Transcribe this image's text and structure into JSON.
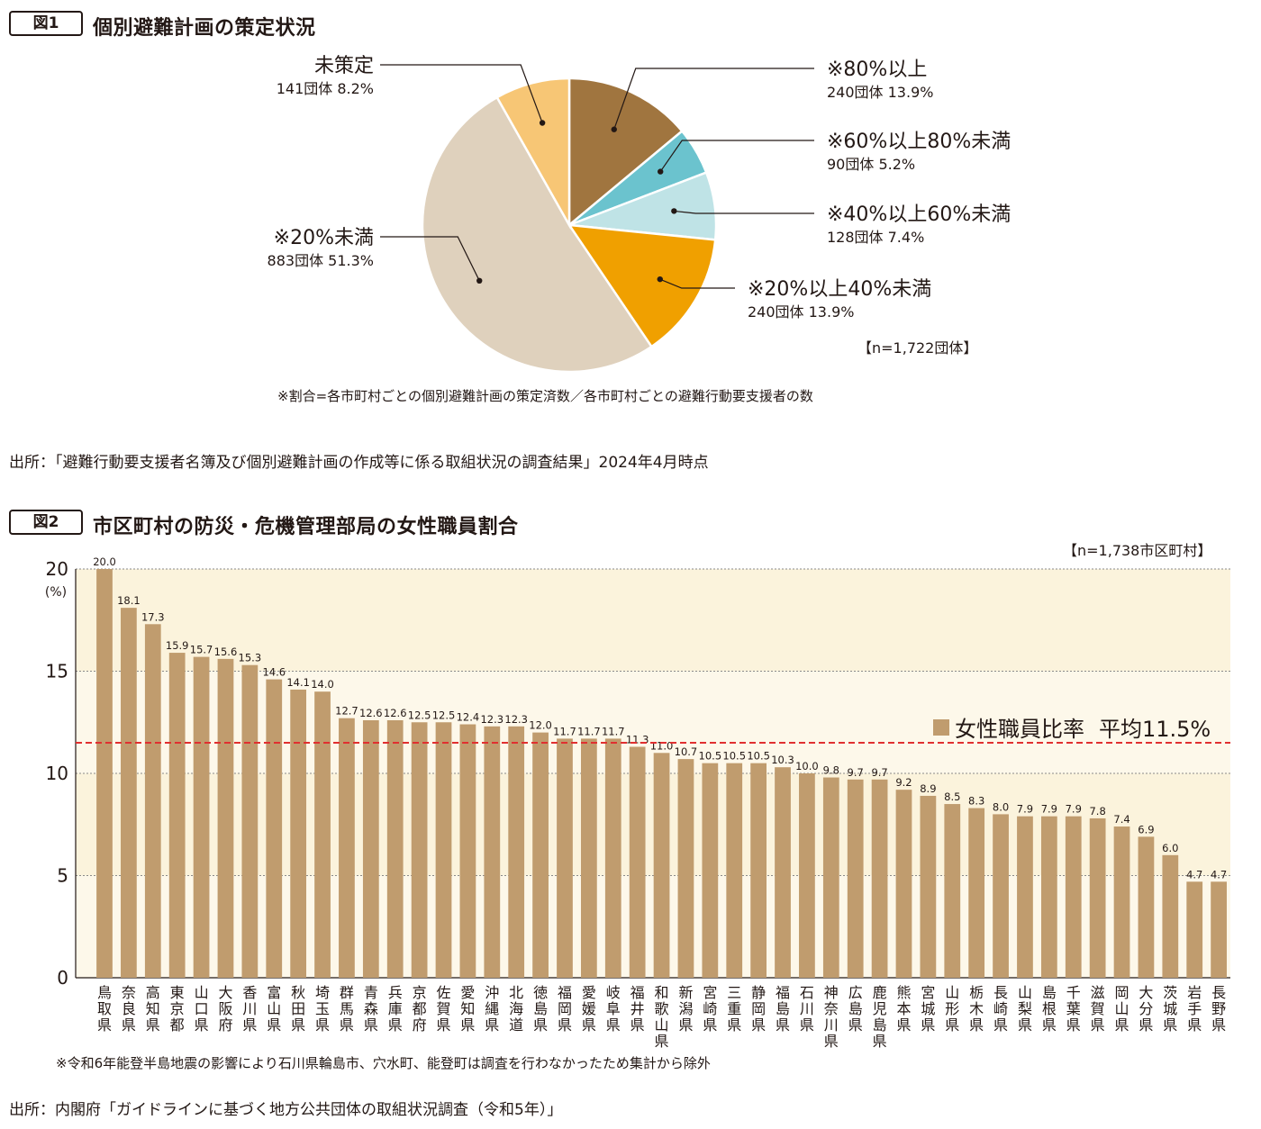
{
  "fig1": {
    "badge": "図1",
    "title": "個別避難計画の策定状況",
    "n_label": "【n=1,722団体】",
    "footnote": "※割合=各市町村ごとの個別避難計画の策定済数／各市町村ごとの避難行動要支援者の数",
    "source": "出所：「避難行動要支援者名簿及び個別避難計画の作成等に係る取組状況の調査結果」2024年4月時点"
  },
  "fig2": {
    "badge": "図2",
    "title": "市区町村の防災・危機管理部局の女性職員割合",
    "n_label": "【n=1,738市区町村】",
    "y_unit": "(%)",
    "legend_label": "女性職員比率",
    "avg_label": "平均11.5%",
    "footnote": "※令和6年能登半島地震の影響により石川県輪島市、穴水町、能登町は調査を行わなかったため集計から除外",
    "source": "出所：内閣府「ガイドラインに基づく地方公共団体の取組状況調査（令和5年）」"
  },
  "chart_data": [
    {
      "type": "pie",
      "slices": [
        {
          "label": "※80%以上",
          "detail": "240団体 13.9%",
          "count": 240,
          "percent": 13.9,
          "color": "#a0753f"
        },
        {
          "label": "※60%以上80%未満",
          "detail": "90団体 5.2%",
          "count": 90,
          "percent": 5.2,
          "color": "#6bc3ce"
        },
        {
          "label": "※40%以上60%未満",
          "detail": "128団体 7.4%",
          "count": 128,
          "percent": 7.4,
          "color": "#bfe3e6"
        },
        {
          "label": "※20%以上40%未満",
          "detail": "240団体 13.9%",
          "count": 240,
          "percent": 13.9,
          "color": "#f0a000"
        },
        {
          "label": "※20%未満",
          "detail": "883団体 51.3%",
          "count": 883,
          "percent": 51.3,
          "color": "#dfd1bd"
        },
        {
          "label": "未策定",
          "detail": "141団体 8.2%",
          "count": 141,
          "percent": 8.2,
          "color": "#f7c675"
        }
      ]
    },
    {
      "type": "bar",
      "ylim": [
        0,
        20
      ],
      "yticks": [
        0,
        5,
        10,
        15,
        20
      ],
      "average": 11.5,
      "bar_color": "#c09c6e",
      "avg_line_color": "#e03030",
      "categories": [
        "鳥取県",
        "奈良県",
        "高知県",
        "東京都",
        "山口県",
        "大阪府",
        "香川県",
        "富山県",
        "秋田県",
        "埼玉県",
        "群馬県",
        "青森県",
        "兵庫県",
        "京都府",
        "佐賀県",
        "愛知県",
        "沖縄県",
        "北海道",
        "徳島県",
        "福岡県",
        "愛媛県",
        "岐阜県",
        "福井県",
        "和歌山県",
        "新潟県",
        "宮崎県",
        "三重県",
        "静岡県",
        "福島県",
        "石川県",
        "神奈川県",
        "広島県",
        "鹿児島県",
        "熊本県",
        "宮城県",
        "山形県",
        "栃木県",
        "長崎県",
        "山梨県",
        "島根県",
        "千葉県",
        "滋賀県",
        "岡山県",
        "大分県",
        "茨城県",
        "岩手県",
        "長野県"
      ],
      "values": [
        20.0,
        18.1,
        17.3,
        15.9,
        15.7,
        15.6,
        15.3,
        14.6,
        14.1,
        14.0,
        12.7,
        12.6,
        12.6,
        12.5,
        12.5,
        12.4,
        12.3,
        12.3,
        12.0,
        11.7,
        11.7,
        11.7,
        11.3,
        11.0,
        10.7,
        10.5,
        10.5,
        10.5,
        10.3,
        10.0,
        9.8,
        9.7,
        9.7,
        9.2,
        8.9,
        8.5,
        8.3,
        8.0,
        7.9,
        7.9,
        7.9,
        7.8,
        7.4,
        6.9,
        6.0,
        4.7,
        4.7
      ],
      "value_labels": [
        "20.0",
        "18.1",
        "17.3",
        "15.9",
        "15.7",
        "15.6",
        "15.3",
        "14.6",
        "14.1",
        "14.0",
        "12.7",
        "12.6",
        "12.6",
        "12.5",
        "12.5",
        "12.4",
        "12.3",
        "12.3",
        "12.0",
        "11.7",
        "11.7",
        "11.7",
        "11.3",
        "11.0",
        "10.7",
        "10.5",
        "10.5",
        "10.5",
        "10.3",
        "10.0",
        "9.8",
        "9.7",
        "9.7",
        "9.2",
        "8.9",
        "8.5",
        "8.3",
        "8.0",
        "7.9",
        "7.9",
        "7.9",
        "7.8",
        "7.4",
        "6.9",
        "6.0",
        "4.7",
        "4.7"
      ]
    }
  ]
}
